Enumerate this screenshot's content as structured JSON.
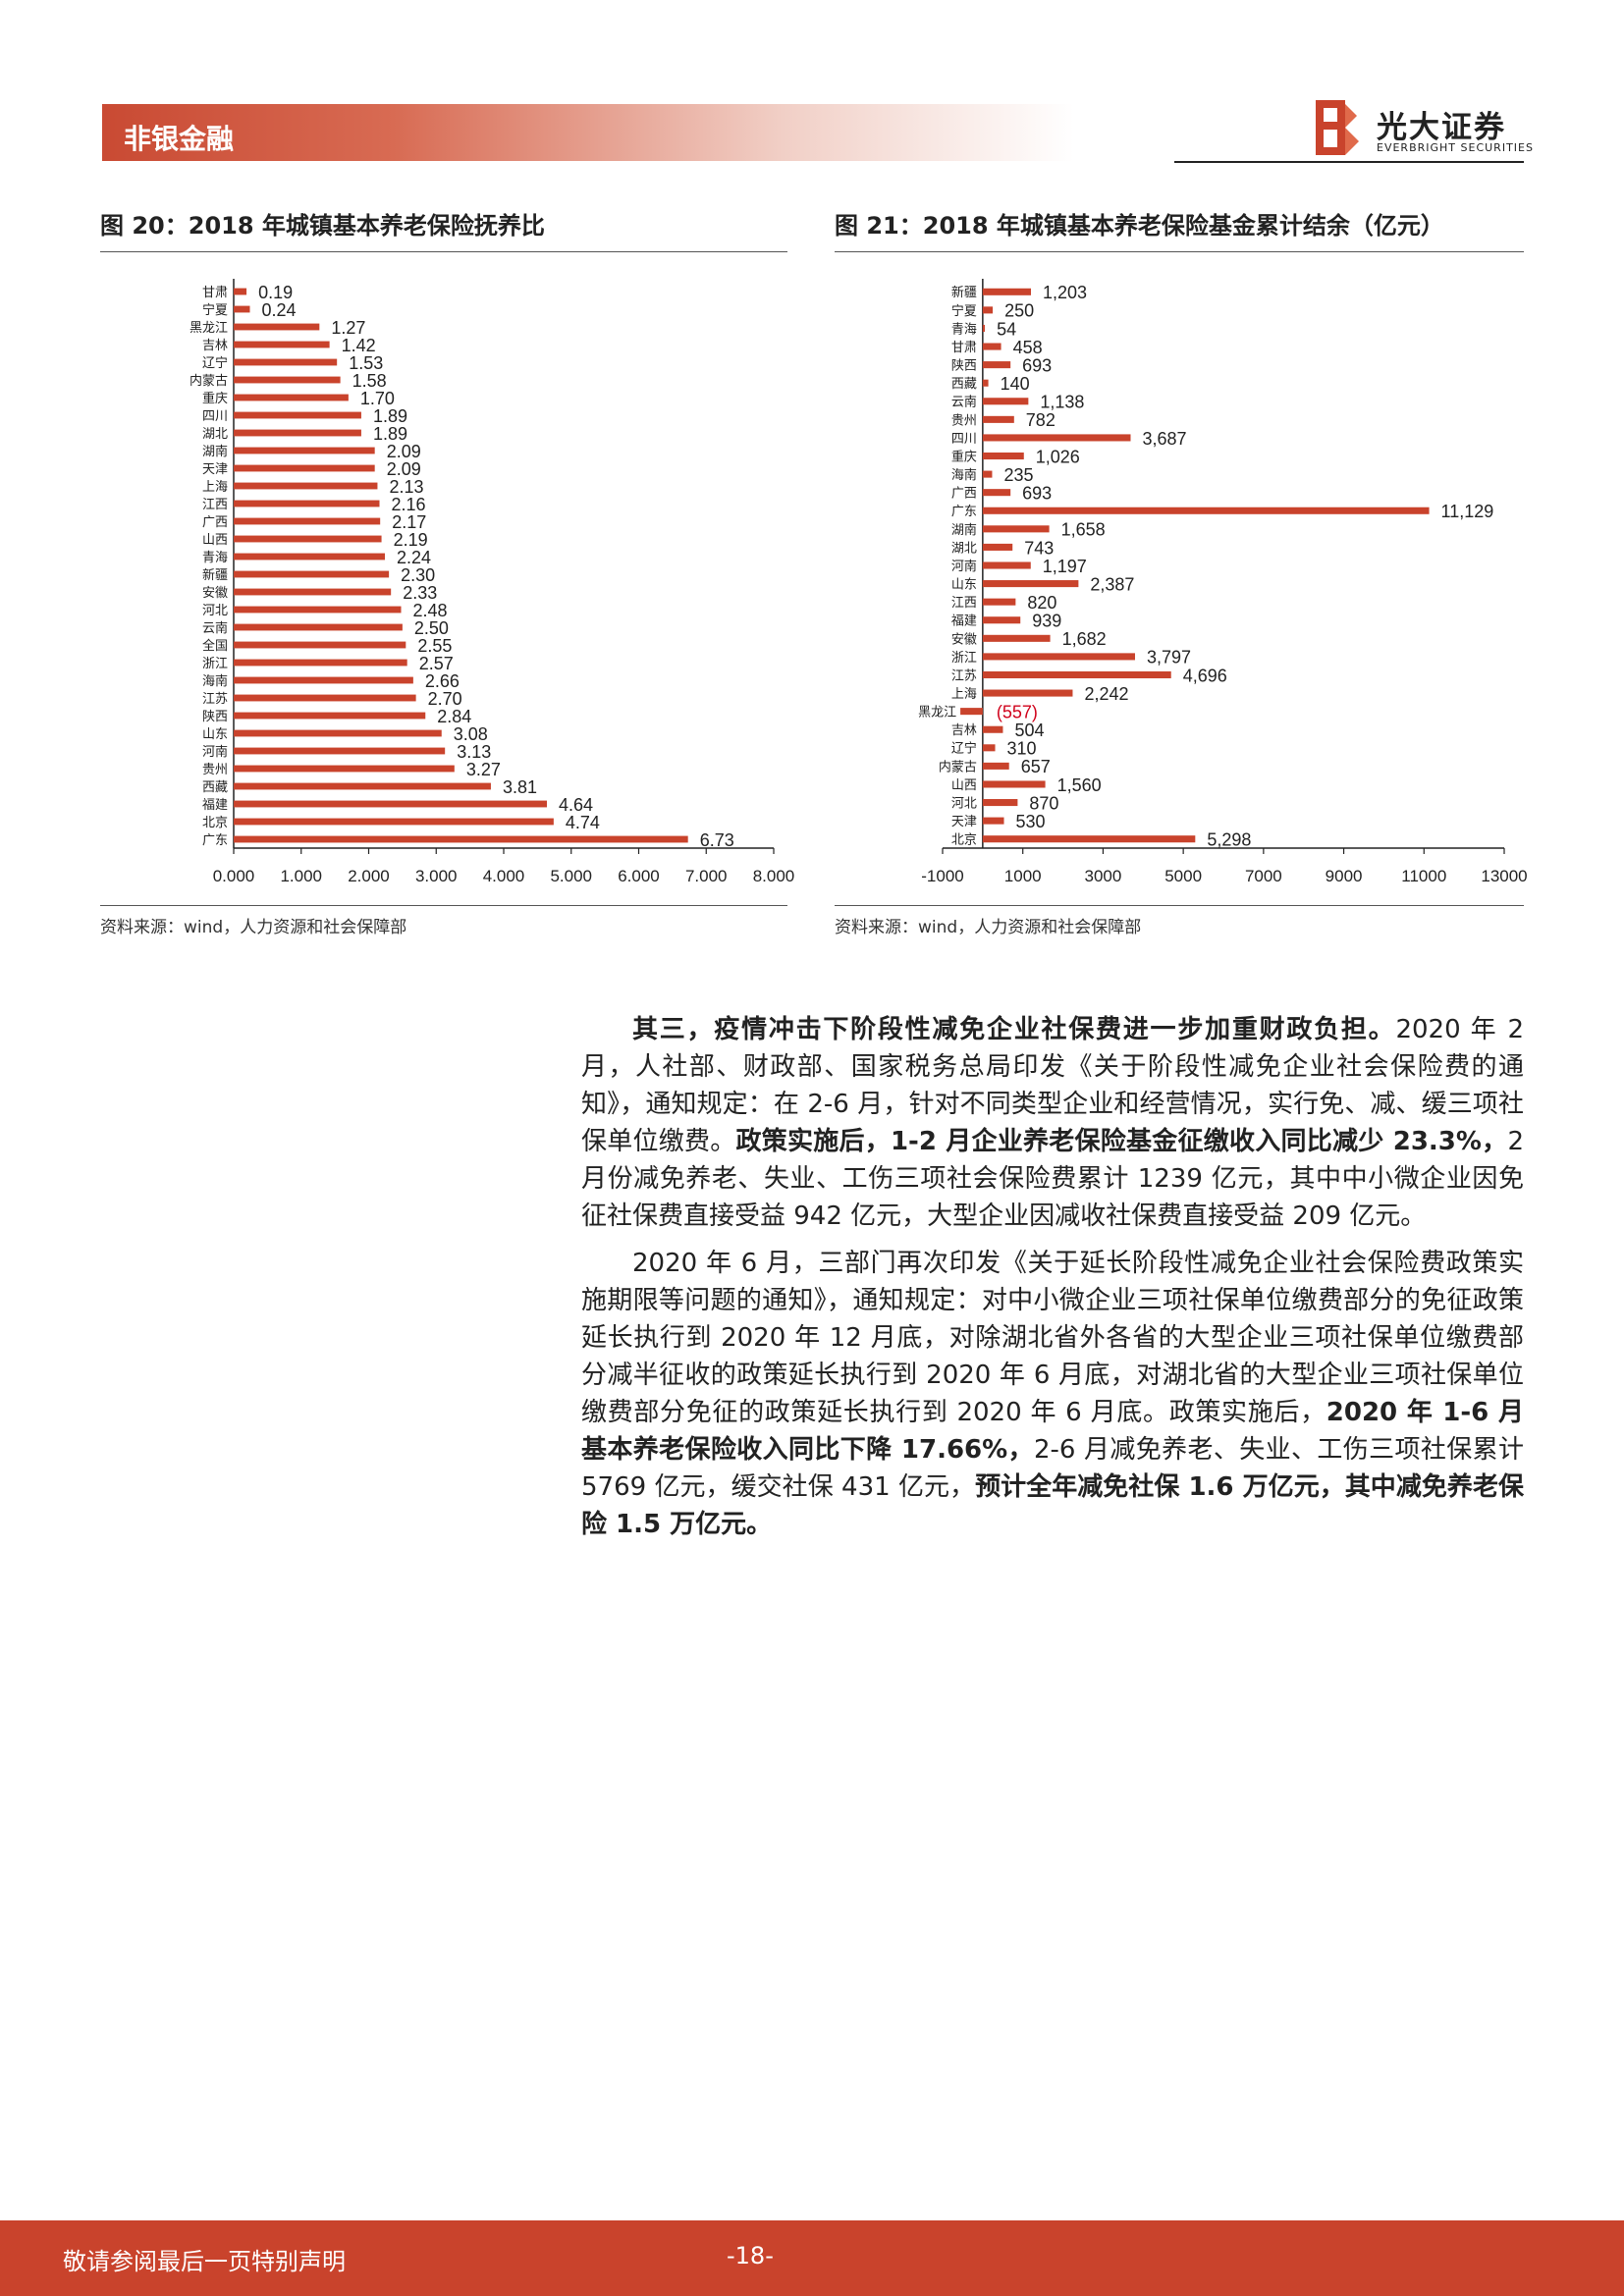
{
  "header": {
    "section": "非银金融",
    "logo_text": "光大证券",
    "logo_sub": "EVERBRIGHT SECURITIES"
  },
  "figures": [
    {
      "title": "图 20：2018 年城镇基本养老保险抚养比",
      "source": "资料来源：wind，人力资源和社会保障部"
    },
    {
      "title": "图 21：2018 年城镇基本养老保险基金累计结余（亿元）",
      "source": "资料来源：wind，人力资源和社会保障部"
    }
  ],
  "chart_data": [
    {
      "type": "bar",
      "orientation": "horizontal",
      "color": "#c9432c",
      "categories": [
        "甘肃",
        "宁夏",
        "黑龙江",
        "吉林",
        "辽宁",
        "内蒙古",
        "重庆",
        "四川",
        "湖北",
        "湖南",
        "天津",
        "上海",
        "江西",
        "广西",
        "山西",
        "青海",
        "新疆",
        "安徽",
        "河北",
        "云南",
        "全国",
        "浙江",
        "海南",
        "江苏",
        "陕西",
        "山东",
        "河南",
        "贵州",
        "西藏",
        "福建",
        "北京",
        "广东"
      ],
      "values": [
        0.19,
        0.24,
        1.27,
        1.42,
        1.53,
        1.58,
        1.7,
        1.89,
        1.89,
        2.09,
        2.09,
        2.13,
        2.16,
        2.17,
        2.19,
        2.24,
        2.3,
        2.33,
        2.48,
        2.5,
        2.55,
        2.57,
        2.66,
        2.7,
        2.84,
        3.08,
        3.13,
        3.27,
        3.81,
        4.64,
        4.74,
        6.73
      ],
      "labels": [
        "0.19",
        "0.24",
        "1.27",
        "1.42",
        "1.53",
        "1.58",
        "1.70",
        "1.89",
        "1.89",
        "2.09",
        "2.09",
        "2.13",
        "2.16",
        "2.17",
        "2.19",
        "2.24",
        "2.30",
        "2.33",
        "2.48",
        "2.50",
        "2.55",
        "2.57",
        "2.66",
        "2.70",
        "2.84",
        "3.08",
        "3.13",
        "3.27",
        "3.81",
        "4.64",
        "4.74",
        "6.73"
      ],
      "xlim": [
        0,
        8
      ],
      "xticks": [
        "0.000",
        "1.000",
        "2.000",
        "3.000",
        "4.000",
        "5.000",
        "6.000",
        "7.000",
        "8.000"
      ]
    },
    {
      "type": "bar",
      "orientation": "horizontal",
      "color": "#c9432c",
      "negative_label_color": "#d0021b",
      "categories": [
        "新疆",
        "宁夏",
        "青海",
        "甘肃",
        "陕西",
        "西藏",
        "云南",
        "贵州",
        "四川",
        "重庆",
        "海南",
        "广西",
        "广东",
        "湖南",
        "湖北",
        "河南",
        "山东",
        "江西",
        "福建",
        "安徽",
        "浙江",
        "江苏",
        "上海",
        "黑龙江",
        "吉林",
        "辽宁",
        "内蒙古",
        "山西",
        "河北",
        "天津",
        "北京"
      ],
      "values": [
        1203,
        250,
        54,
        458,
        693,
        140,
        1138,
        782,
        3687,
        1026,
        235,
        693,
        11129,
        1658,
        743,
        1197,
        2387,
        820,
        939,
        1682,
        3797,
        4696,
        2242,
        -557,
        504,
        310,
        657,
        1560,
        870,
        530,
        5298
      ],
      "labels": [
        "1,203",
        "250",
        "54",
        "458",
        "693",
        "140",
        "1,138",
        "782",
        "3,687",
        "1,026",
        "235",
        "693",
        "11,129",
        "1,658",
        "743",
        "1,197",
        "2,387",
        "820",
        "939",
        "1,682",
        "3,797",
        "4,696",
        "2,242",
        "(557)",
        "504",
        "310",
        "657",
        "1,560",
        "870",
        "530",
        "5,298"
      ],
      "xlim": [
        -1000,
        13000
      ],
      "xticks": [
        "-1000",
        "1000",
        "3000",
        "5000",
        "7000",
        "9000",
        "11000",
        "13000"
      ]
    }
  ],
  "body": {
    "p1": {
      "b1": "其三，疫情冲击下阶段性减免企业社保费进一步加重财政负担。",
      "t1": "2020 年 2 月，人社部、财政部、国家税务总局印发《关于阶段性减免企业社会保险费的通知》，通知规定：在 2-6 月，针对不同类型企业和经营情况，实行免、减、缓三项社保单位缴费。",
      "b2": "政策实施后，1-2 月企业养老保险基金征缴收入同比减少 23.3%，",
      "t2": "2 月份减免养老、失业、工伤三项社会保险费累计 1239 亿元，其中中小微企业因免征社保费直接受益 942 亿元，大型企业因减收社保费直接受益 209 亿元。"
    },
    "p2": {
      "t1": "2020 年 6 月，三部门再次印发《关于延长阶段性减免企业社会保险费政策实施期限等问题的通知》，通知规定：对中小微企业三项社保单位缴费部分的免征政策延长执行到 2020 年 12 月底，对除湖北省外各省的大型企业三项社保单位缴费部分减半征收的政策延长执行到 2020 年 6 月底，对湖北省的大型企业三项社保单位缴费部分免征的政策延长执行到 2020 年 6 月底。政策实施后，",
      "b1": "2020 年 1-6 月基本养老保险收入同比下降 17.66%，",
      "t2": "2-6 月减免养老、失业、工伤三项社保累计 5769 亿元，缓交社保 431 亿元，",
      "b2": "预计全年减免社保 1.6 万亿元，其中减免养老保险 1.5 万亿元。"
    }
  },
  "footer": {
    "disclaimer": "敬请参阅最后一页特别声明",
    "page": "-18-"
  }
}
